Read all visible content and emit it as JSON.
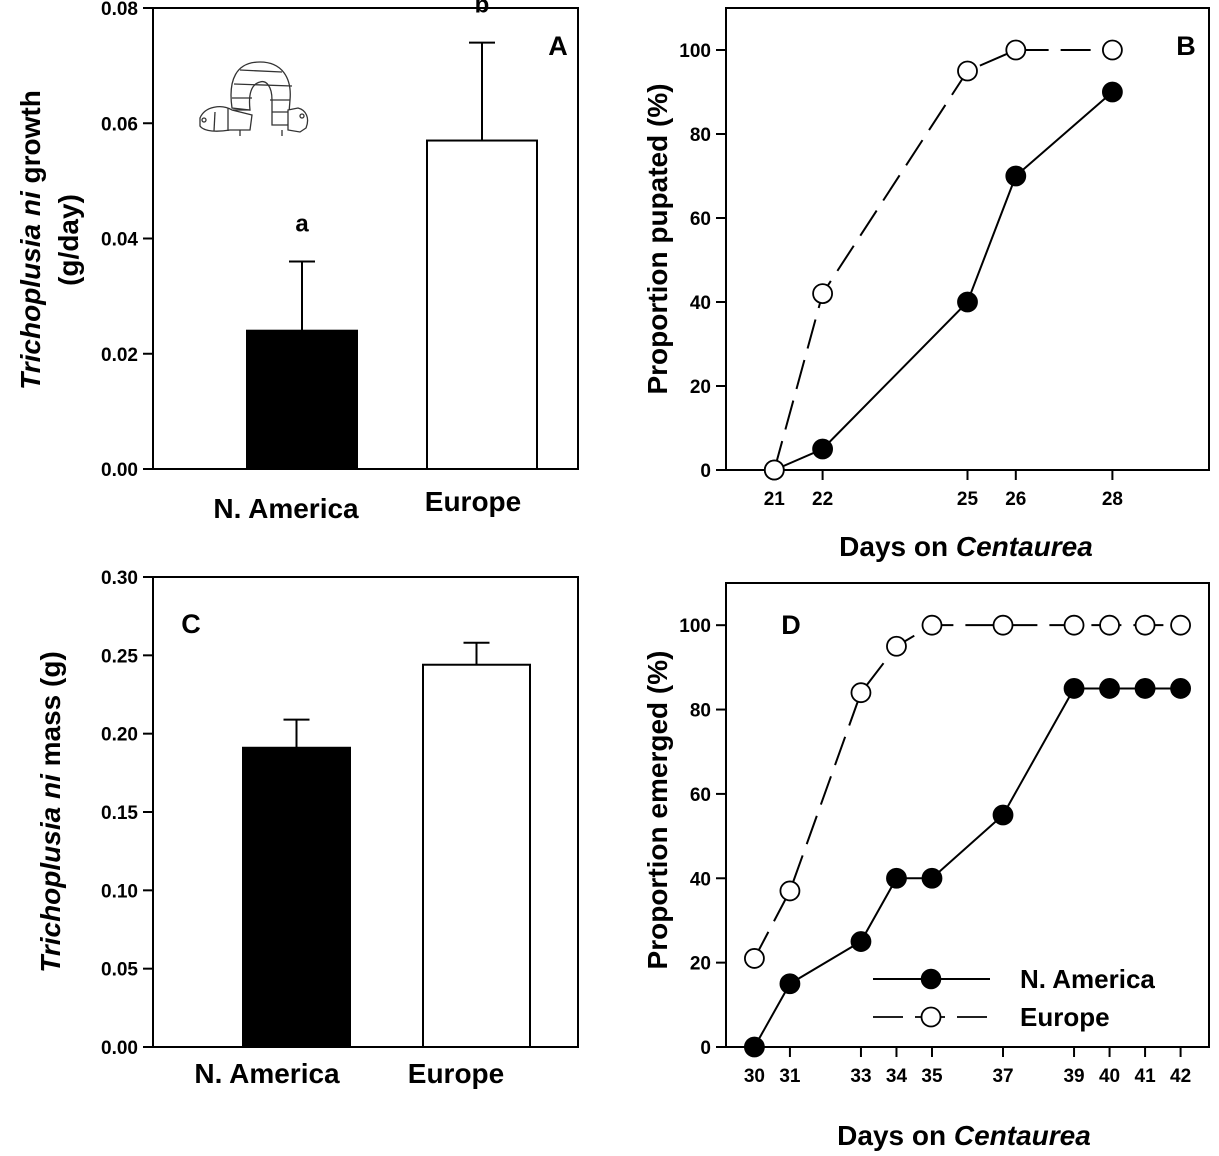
{
  "chart_data": [
    {
      "panel": "A",
      "type": "bar",
      "categories": [
        "N. America",
        "Europe"
      ],
      "values": [
        0.024,
        0.057
      ],
      "errors": [
        0.012,
        0.017
      ],
      "fills": [
        "#000000",
        "#ffffff"
      ],
      "significance": [
        "a",
        "b"
      ],
      "ylabel_italic": "Trichoplusia ni",
      "ylabel_rest": " growth",
      "ylabel_line2": "(g/day)",
      "ylim": [
        0,
        0.08
      ],
      "yticks": [
        0.0,
        0.02,
        0.04,
        0.06,
        0.08
      ],
      "ytick_labels": [
        "0.00",
        "0.02",
        "0.04",
        "0.06",
        "0.08"
      ],
      "inset_icon": "caterpillar-icon"
    },
    {
      "panel": "B",
      "type": "line",
      "series": [
        {
          "x": [
            21,
            22,
            25,
            26,
            28
          ],
          "y": [
            0,
            5,
            40,
            70,
            90
          ],
          "marker": "filled",
          "line": "solid"
        },
        {
          "x": [
            21,
            22,
            25,
            26,
            28
          ],
          "y": [
            0,
            42,
            95,
            100,
            100
          ],
          "marker": "open",
          "line": "dashed"
        }
      ],
      "xlim": [
        20,
        30
      ],
      "xticks": [
        21,
        22,
        25,
        26,
        28
      ],
      "ylim": [
        0,
        110
      ],
      "yticks": [
        0,
        20,
        40,
        60,
        80,
        100
      ],
      "xlabel_plain": "Days on ",
      "xlabel_italic": "Centaurea",
      "ylabel": "Proportion pupated (%)"
    },
    {
      "panel": "C",
      "type": "bar",
      "categories": [
        "N. America",
        "Europe"
      ],
      "values": [
        0.191,
        0.244
      ],
      "errors": [
        0.018,
        0.014
      ],
      "fills": [
        "#000000",
        "#ffffff"
      ],
      "ylabel_italic": "Trichoplusia ni",
      "ylabel_rest": " mass (g)",
      "ylim": [
        0,
        0.3
      ],
      "yticks": [
        0.0,
        0.05,
        0.1,
        0.15,
        0.2,
        0.25,
        0.3
      ],
      "ytick_labels": [
        "0.00",
        "0.05",
        "0.10",
        "0.15",
        "0.20",
        "0.25",
        "0.30"
      ]
    },
    {
      "panel": "D",
      "type": "line",
      "series": [
        {
          "name": "N. America",
          "x": [
            30,
            31,
            33,
            34,
            35,
            37,
            39,
            40,
            41,
            42
          ],
          "y": [
            0,
            15,
            25,
            40,
            40,
            55,
            85,
            85,
            85,
            85
          ],
          "marker": "filled",
          "line": "solid"
        },
        {
          "name": "Europe",
          "x": [
            30,
            31,
            33,
            34,
            35,
            37,
            39,
            40,
            41,
            42
          ],
          "y": [
            21,
            37,
            84,
            95,
            100,
            100,
            100,
            100,
            100,
            100
          ],
          "marker": "open",
          "line": "dashed"
        }
      ],
      "xlim": [
        29.2,
        42.8
      ],
      "xticks": [
        30,
        31,
        33,
        34,
        35,
        37,
        39,
        40,
        41,
        42
      ],
      "ylim": [
        0,
        110
      ],
      "yticks": [
        0,
        20,
        40,
        60,
        80,
        100
      ],
      "xlabel_plain": "Days on ",
      "xlabel_italic": "Centaurea",
      "ylabel": "Proportion emerged (%)",
      "legend_position": "bottom-right"
    }
  ]
}
